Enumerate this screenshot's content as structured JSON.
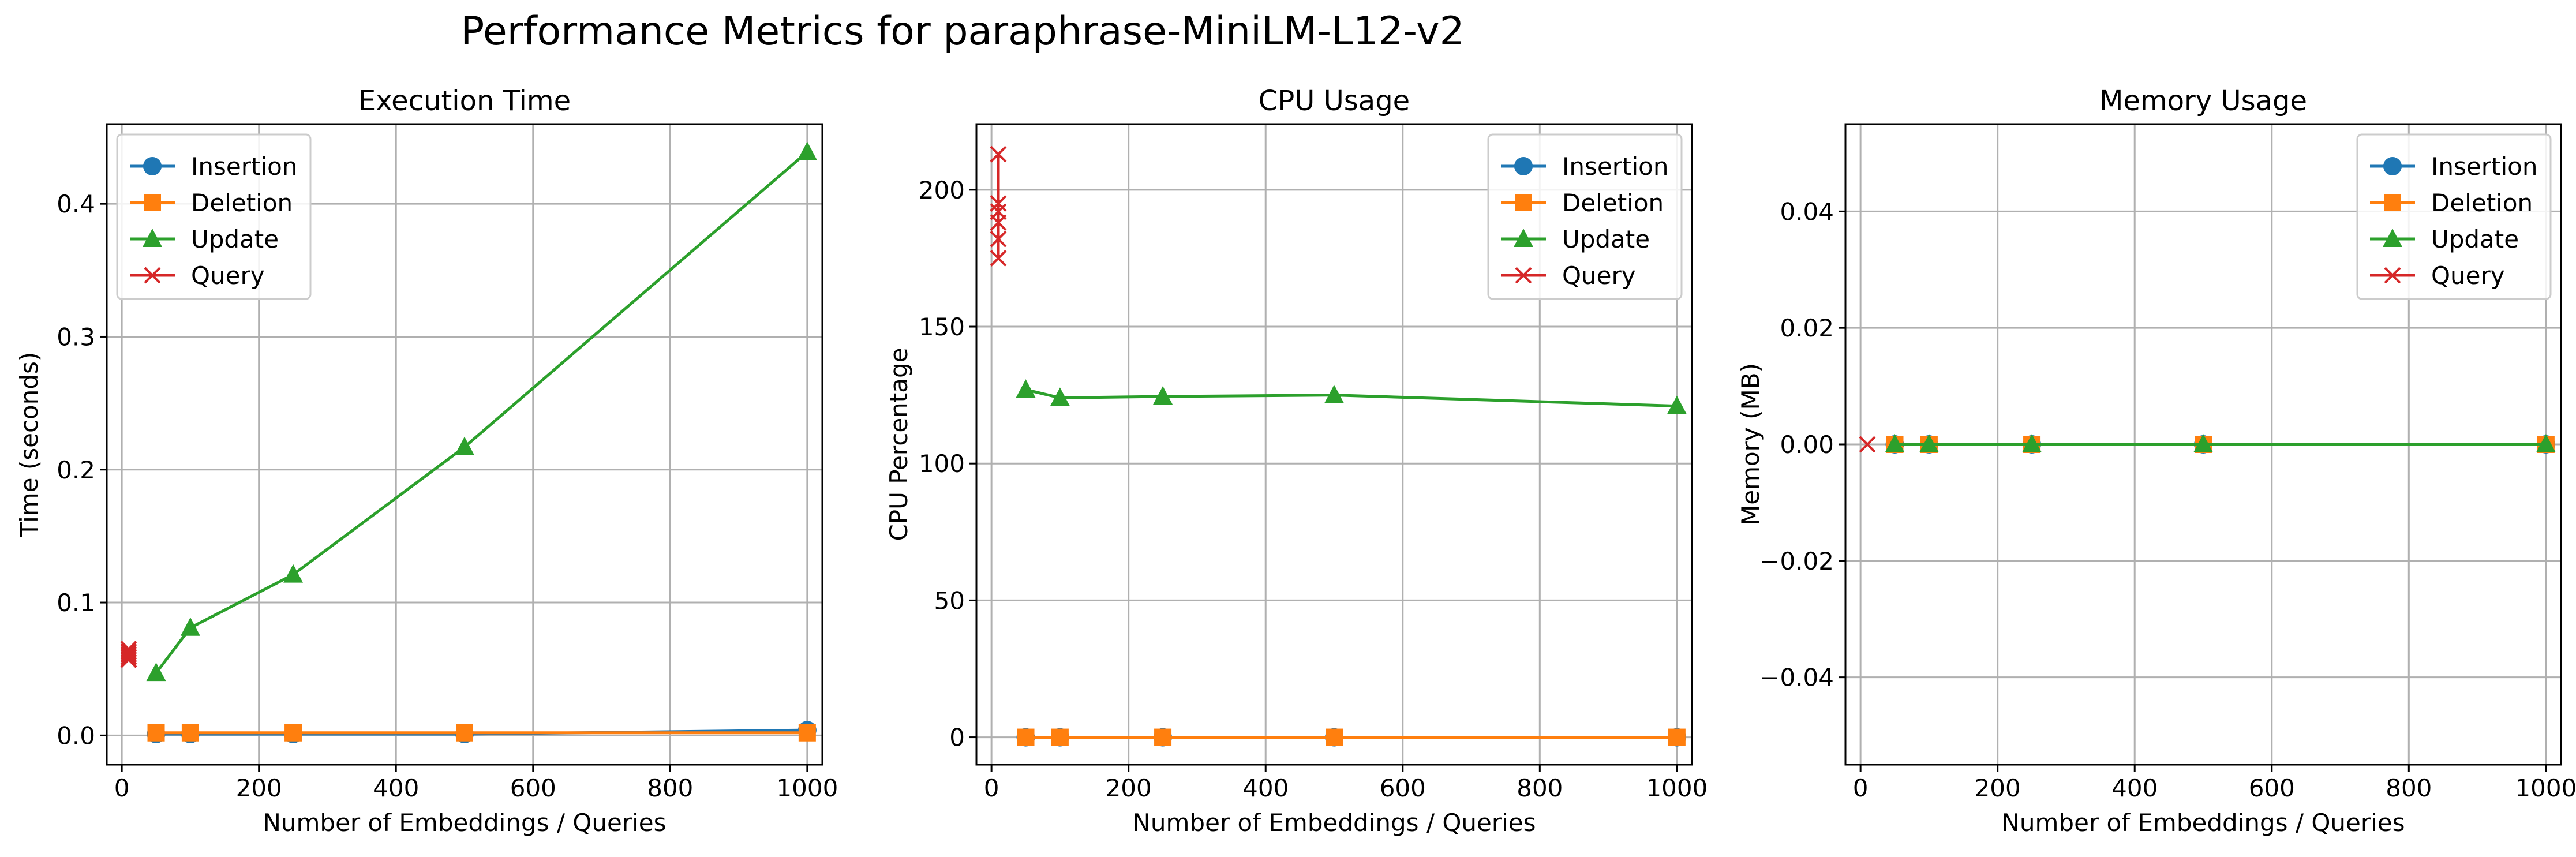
{
  "suptitle": "Performance Metrics for paraphrase-MiniLM-L12-v2",
  "colors": {
    "Insertion": "#1f77b4",
    "Deletion": "#ff7f0e",
    "Update": "#2ca02c",
    "Query": "#d62728"
  },
  "chart_data": [
    {
      "type": "line",
      "title": "Execution Time",
      "xlabel": "Number of Embeddings / Queries",
      "ylabel": "Time (seconds)",
      "xlim": [
        -22,
        1022
      ],
      "ylim": [
        -0.022,
        0.46
      ],
      "xticks": [
        0,
        200,
        400,
        600,
        800,
        1000
      ],
      "yticks": [
        0.0,
        0.1,
        0.2,
        0.3,
        0.4
      ],
      "ytick_labels": [
        "0.0",
        "0.1",
        "0.2",
        "0.3",
        "0.4"
      ],
      "grid": true,
      "legend_position": "upper-left",
      "series": [
        {
          "name": "Insertion",
          "marker": "circle",
          "x": [
            50,
            100,
            250,
            500,
            1000
          ],
          "y": [
            0.001,
            0.001,
            0.001,
            0.001,
            0.004
          ]
        },
        {
          "name": "Deletion",
          "marker": "square",
          "x": [
            50,
            100,
            250,
            500,
            1000
          ],
          "y": [
            0.002,
            0.002,
            0.002,
            0.002,
            0.002
          ]
        },
        {
          "name": "Update",
          "marker": "triangle",
          "x": [
            50,
            100,
            250,
            500,
            1000
          ],
          "y": [
            0.047,
            0.081,
            0.121,
            0.217,
            0.439
          ]
        },
        {
          "name": "Query",
          "marker": "x",
          "x": [
            10,
            10,
            10,
            10,
            10
          ],
          "y": [
            0.057,
            0.059,
            0.061,
            0.063,
            0.065
          ]
        }
      ]
    },
    {
      "type": "line",
      "title": "CPU Usage",
      "xlabel": "Number of Embeddings / Queries",
      "ylabel": "CPU Percentage",
      "xlim": [
        -22,
        1022
      ],
      "ylim": [
        -10,
        224
      ],
      "xticks": [
        0,
        200,
        400,
        600,
        800,
        1000
      ],
      "yticks": [
        0,
        50,
        100,
        150,
        200
      ],
      "ytick_labels": [
        "0",
        "50",
        "100",
        "150",
        "200"
      ],
      "grid": true,
      "legend_position": "upper-right",
      "series": [
        {
          "name": "Insertion",
          "marker": "circle",
          "x": [
            50,
            100,
            250,
            500,
            1000
          ],
          "y": [
            0,
            0,
            0,
            0,
            0
          ]
        },
        {
          "name": "Deletion",
          "marker": "square",
          "x": [
            50,
            100,
            250,
            500,
            1000
          ],
          "y": [
            0,
            0,
            0,
            0,
            0
          ]
        },
        {
          "name": "Update",
          "marker": "triangle",
          "x": [
            50,
            100,
            250,
            500,
            1000
          ],
          "y": [
            127,
            124,
            124.5,
            125,
            121
          ]
        },
        {
          "name": "Query",
          "marker": "x",
          "x": [
            10,
            10,
            10,
            10,
            10,
            10
          ],
          "y": [
            213,
            192,
            188,
            182,
            175,
            195
          ]
        }
      ]
    },
    {
      "type": "line",
      "title": "Memory Usage",
      "xlabel": "Number of Embeddings / Queries",
      "ylabel": "Memory (MB)",
      "xlim": [
        -22,
        1022
      ],
      "ylim": [
        -0.055,
        0.055
      ],
      "xticks": [
        0,
        200,
        400,
        600,
        800,
        1000
      ],
      "yticks": [
        -0.04,
        -0.02,
        0.0,
        0.02,
        0.04
      ],
      "ytick_labels": [
        "−0.04",
        "−0.02",
        "0.00",
        "0.02",
        "0.04"
      ],
      "grid": true,
      "legend_position": "upper-right",
      "series": [
        {
          "name": "Insertion",
          "marker": "circle",
          "x": [
            50,
            100,
            250,
            500,
            1000
          ],
          "y": [
            0,
            0,
            0,
            0,
            0
          ]
        },
        {
          "name": "Deletion",
          "marker": "square",
          "x": [
            50,
            100,
            250,
            500,
            1000
          ],
          "y": [
            0,
            0,
            0,
            0,
            0
          ]
        },
        {
          "name": "Update",
          "marker": "triangle",
          "x": [
            50,
            100,
            250,
            500,
            1000
          ],
          "y": [
            0,
            0,
            0,
            0,
            0
          ]
        },
        {
          "name": "Query",
          "marker": "x",
          "x": [
            10
          ],
          "y": [
            0
          ]
        }
      ]
    }
  ]
}
